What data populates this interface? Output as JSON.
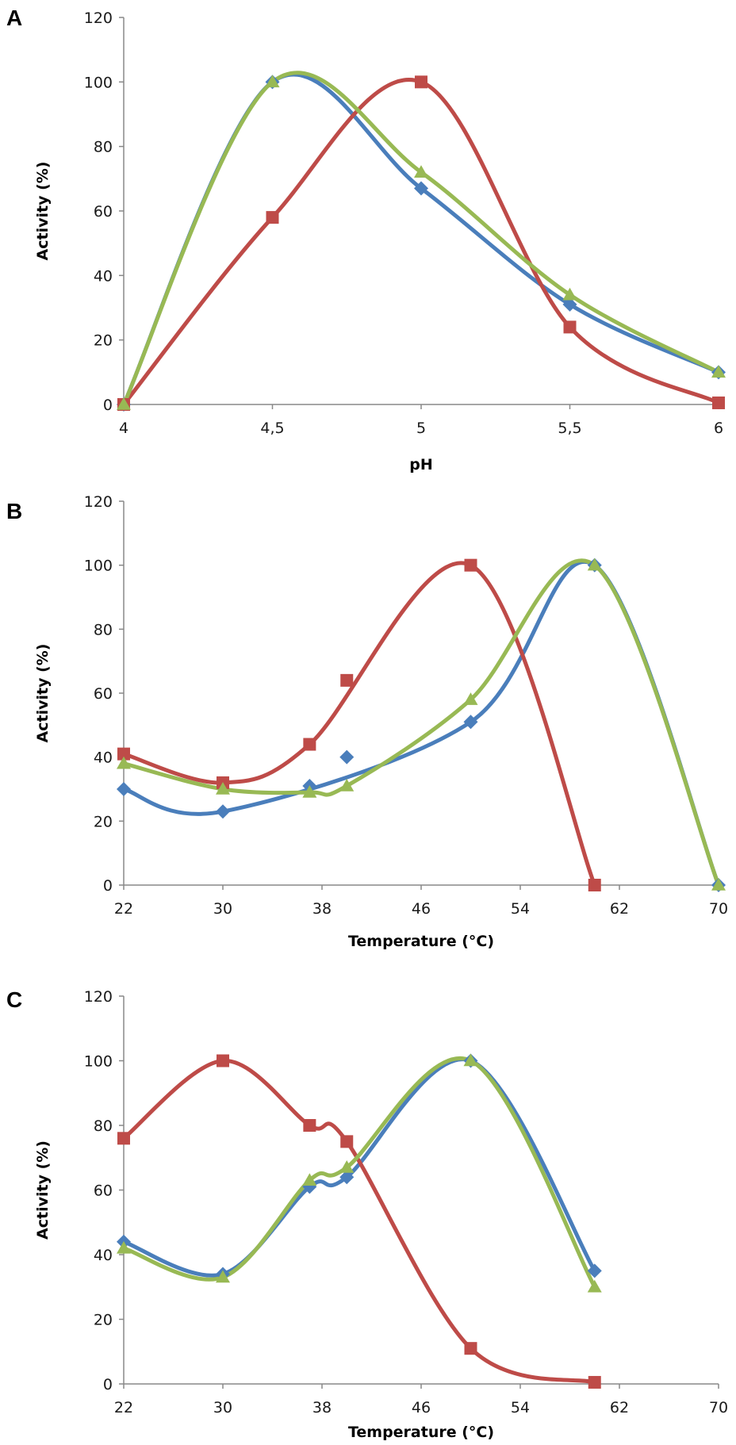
{
  "colors": {
    "blue": "#4a7ebb",
    "red": "#be4b48",
    "green": "#98b954"
  },
  "chart_data": [
    {
      "type": "scatter",
      "panel_label": "A",
      "title": "",
      "xlabel": "pH",
      "ylabel": "Activity (%)",
      "xlim": [
        4,
        6
      ],
      "ylim": [
        0,
        120
      ],
      "x_ticks": [
        4,
        4.5,
        5,
        5.5,
        6
      ],
      "x_tick_labels": [
        "4",
        "4,5",
        "5",
        "5,5",
        "6"
      ],
      "y_ticks": [
        0,
        20,
        40,
        60,
        80,
        100,
        120
      ],
      "y_tick_labels": [
        "0",
        "20",
        "40",
        "60",
        "80",
        "100",
        "120"
      ],
      "legend": "none",
      "grid": false,
      "smooth": true,
      "series": [
        {
          "name": "blue",
          "color": "#4a7ebb",
          "marker": "diamond",
          "x": [
            4,
            4.5,
            5,
            5.5,
            6
          ],
          "y": [
            0,
            100,
            67,
            31,
            10
          ]
        },
        {
          "name": "red",
          "color": "#be4b48",
          "marker": "square",
          "x": [
            4,
            4.5,
            5,
            5.5,
            6
          ],
          "y": [
            0,
            58,
            100,
            24,
            0.5
          ]
        },
        {
          "name": "green",
          "color": "#98b954",
          "marker": "triangle",
          "x": [
            4,
            4.5,
            5,
            5.5,
            6
          ],
          "y": [
            0,
            100,
            72,
            34,
            10
          ]
        }
      ]
    },
    {
      "type": "scatter",
      "panel_label": "B",
      "title": "",
      "xlabel": "Temperature (°C)",
      "ylabel": "Activity (%)",
      "xlim": [
        22,
        70
      ],
      "ylim": [
        0,
        120
      ],
      "x_ticks": [
        22,
        30,
        38,
        46,
        54,
        62,
        70
      ],
      "x_tick_labels": [
        "22",
        "30",
        "38",
        "46",
        "54",
        "62",
        "70"
      ],
      "y_ticks": [
        0,
        20,
        40,
        60,
        80,
        100,
        120
      ],
      "y_tick_labels": [
        "0",
        "20",
        "40",
        "60",
        "80",
        "100",
        "120"
      ],
      "legend": "none",
      "grid": false,
      "smooth": true,
      "series": [
        {
          "name": "blue",
          "color": "#4a7ebb",
          "marker": "diamond",
          "x": [
            22,
            30,
            37,
            40,
            50,
            60,
            70
          ],
          "y": [
            30,
            23,
            31,
            40,
            51,
            100,
            0
          ]
        },
        {
          "name": "red",
          "color": "#be4b48",
          "marker": "square",
          "x": [
            22,
            30,
            37,
            40,
            50,
            60
          ],
          "y": [
            41,
            32,
            44,
            64,
            100,
            0
          ]
        },
        {
          "name": "green",
          "color": "#98b954",
          "marker": "triangle",
          "x": [
            22,
            30,
            37,
            40,
            50,
            60,
            70
          ],
          "y": [
            38,
            30,
            29,
            31,
            58,
            100,
            0
          ]
        }
      ],
      "outliers": [
        {
          "series": "blue",
          "x": 37,
          "y": 31
        },
        {
          "series": "blue",
          "x": 40,
          "y": 40
        },
        {
          "series": "red",
          "x": 40,
          "y": 64
        }
      ]
    },
    {
      "type": "scatter",
      "panel_label": "C",
      "title": "",
      "xlabel": "Temperature (°C)",
      "ylabel": "Activity (%)",
      "xlim": [
        22,
        70
      ],
      "ylim": [
        0,
        120
      ],
      "x_ticks": [
        22,
        30,
        38,
        46,
        54,
        62,
        70
      ],
      "x_tick_labels": [
        "22",
        "30",
        "38",
        "46",
        "54",
        "62",
        "70"
      ],
      "y_ticks": [
        0,
        20,
        40,
        60,
        80,
        100,
        120
      ],
      "y_tick_labels": [
        "0",
        "20",
        "40",
        "60",
        "80",
        "100",
        "120"
      ],
      "legend": "none",
      "grid": false,
      "smooth": true,
      "series": [
        {
          "name": "blue",
          "color": "#4a7ebb",
          "marker": "diamond",
          "x": [
            22,
            30,
            37,
            40,
            50,
            60
          ],
          "y": [
            44,
            34,
            61,
            64,
            100,
            35
          ]
        },
        {
          "name": "red",
          "color": "#be4b48",
          "marker": "square",
          "x": [
            22,
            30,
            37,
            40,
            50,
            60
          ],
          "y": [
            76,
            100,
            80,
            75,
            11,
            0.5
          ]
        },
        {
          "name": "green",
          "color": "#98b954",
          "marker": "triangle",
          "x": [
            22,
            30,
            37,
            40,
            50,
            60
          ],
          "y": [
            42,
            33,
            63,
            67,
            100,
            30
          ]
        }
      ]
    }
  ]
}
